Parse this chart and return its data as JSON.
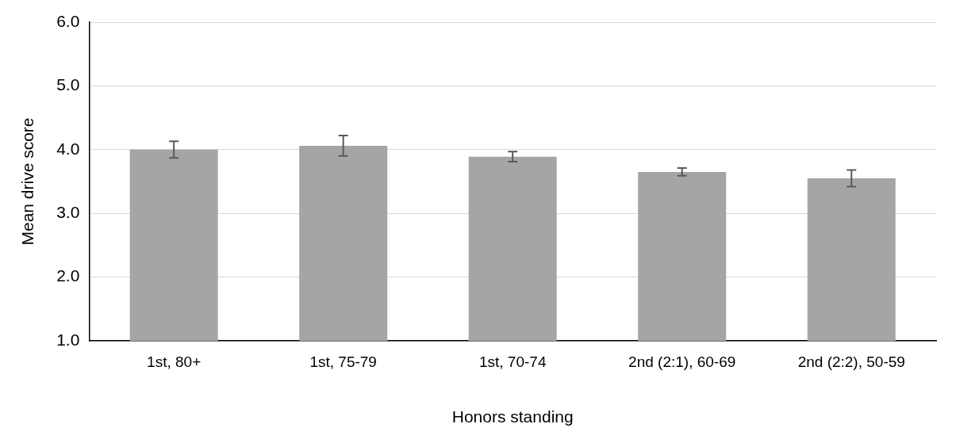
{
  "chart_data": {
    "type": "bar",
    "xlabel": "Honors standing",
    "ylabel": "Mean drive score",
    "categories": [
      "1st, 80+",
      "1st, 75-79",
      "1st, 70-74",
      "2nd (2:1), 60-69",
      "2nd (2:2), 50-59"
    ],
    "values": [
      4.0,
      4.06,
      3.89,
      3.65,
      3.55
    ],
    "errors": [
      0.13,
      0.16,
      0.08,
      0.06,
      0.13
    ],
    "color": "#a5a5a5",
    "ylim": [
      1,
      6
    ],
    "yticks": [
      {
        "value": 1,
        "label": "1.0"
      },
      {
        "value": 2,
        "label": "2.0"
      },
      {
        "value": 3,
        "label": "3.0"
      },
      {
        "value": 4,
        "label": "4.0"
      },
      {
        "value": 5,
        "label": "5.0"
      },
      {
        "value": 6,
        "label": "6.0"
      }
    ],
    "grid": "y",
    "legend": false
  }
}
